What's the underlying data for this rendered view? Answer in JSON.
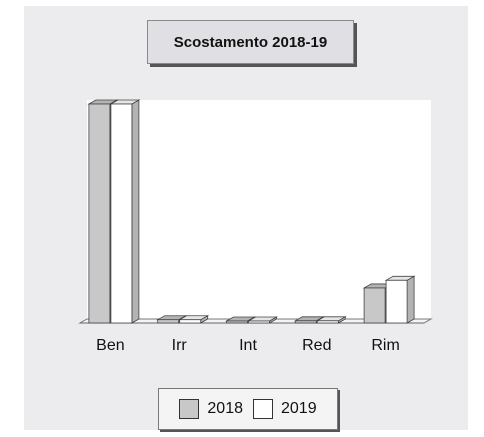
{
  "chart_data": {
    "type": "bar",
    "title": "Scostamento 2018-19",
    "categories": [
      "Ben",
      "Irr",
      "Int",
      "Red",
      "Rim"
    ],
    "series": [
      {
        "name": "2018",
        "values": [
          100,
          1.5,
          0.5,
          1,
          16
        ],
        "color": "#c8c8c8"
      },
      {
        "name": "2019",
        "values": [
          100,
          1.5,
          0.5,
          1,
          19.5
        ],
        "color": "#ffffff"
      }
    ],
    "ylim": [
      0,
      100
    ],
    "grid": false,
    "legend_position": "bottom",
    "xlabel": "",
    "ylabel": ""
  }
}
